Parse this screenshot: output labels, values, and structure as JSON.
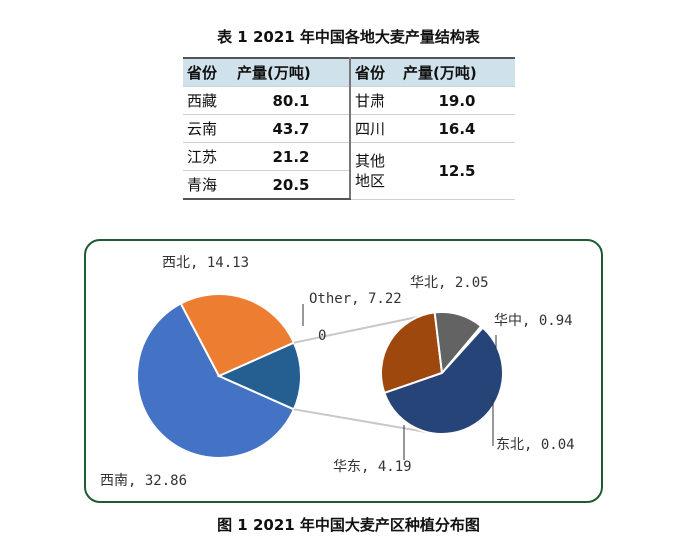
{
  "table": {
    "title": "表 1   2021 年中国各地大麦产量结构表",
    "headers": [
      "省份",
      "产量(万吨)",
      "省份",
      "产量(万吨)"
    ],
    "left_rows": [
      {
        "province": "西藏",
        "value": "80.1"
      },
      {
        "province": "云南",
        "value": "43.7"
      },
      {
        "province": "江苏",
        "value": "21.2"
      },
      {
        "province": "青海",
        "value": "20.5"
      }
    ],
    "right_rows": [
      {
        "province": "甘肃",
        "value": "19.0"
      },
      {
        "province": "四川",
        "value": "16.4"
      },
      {
        "province": "其他\n地区",
        "value": "12.5"
      }
    ]
  },
  "figure_title": "图 1   2021 年中国大麦产区种植分布图",
  "chart_data": {
    "type": "pie",
    "subtype": "pie-of-pie",
    "main_pie": {
      "slices": [
        {
          "label": "西南, 32.86",
          "name": "西南",
          "value": 32.86,
          "color": "#4472c4"
        },
        {
          "label": "西北, 14.13",
          "name": "西北",
          "value": 14.13,
          "color": "#ed7d31"
        },
        {
          "label": "Other, 7.22",
          "name": "Other",
          "value": 7.22,
          "color": "#255e91"
        }
      ],
      "zero_label": "0"
    },
    "secondary_pie": {
      "slices": [
        {
          "label": "华东, 4.19",
          "name": "华东",
          "value": 4.19,
          "color": "#264478"
        },
        {
          "label": "华北, 2.05",
          "name": "华北",
          "value": 2.05,
          "color": "#9e480e"
        },
        {
          "label": "华中, 0.94",
          "name": "华中",
          "value": 0.94,
          "color": "#636363"
        },
        {
          "label": "东北, 0.04",
          "name": "东北",
          "value": 0.04,
          "color": "#997300"
        }
      ]
    }
  }
}
